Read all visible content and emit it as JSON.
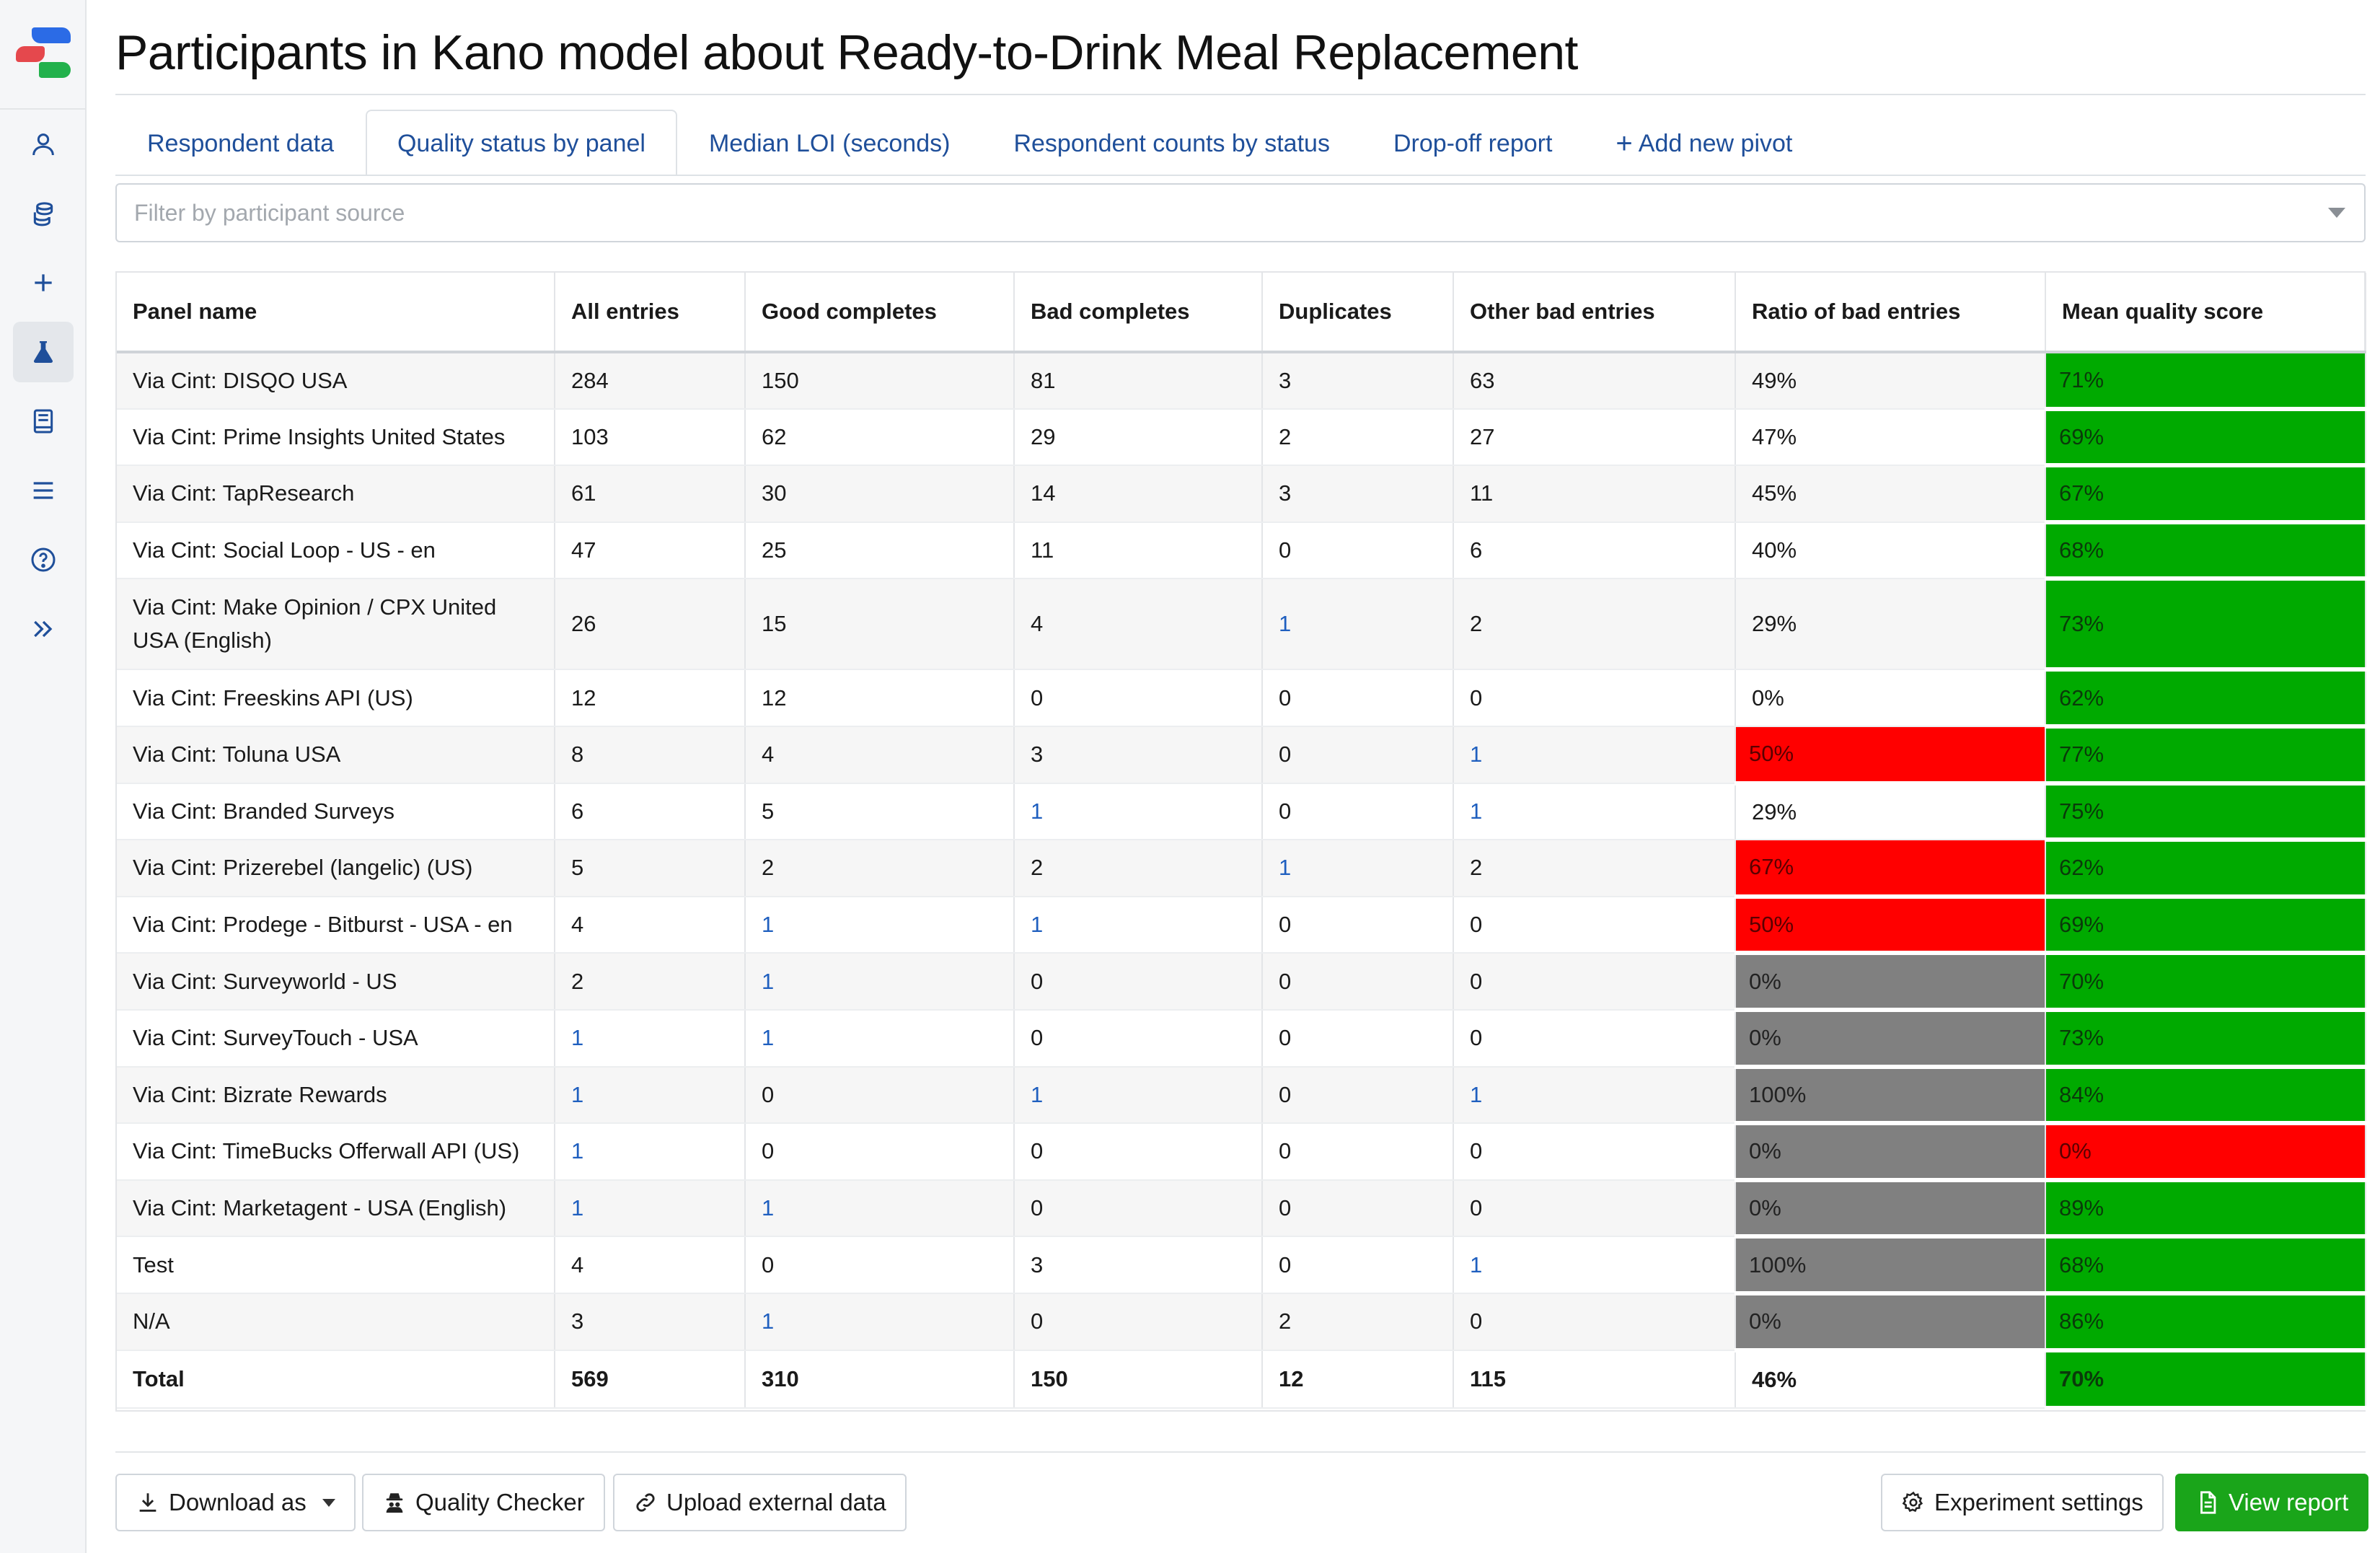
{
  "page": {
    "title": "Participants in Kano model about Ready-to-Drink Meal Replacement"
  },
  "sidebar": {
    "items": [
      {
        "icon": "user-icon"
      },
      {
        "icon": "database-icon"
      },
      {
        "icon": "plus-icon"
      },
      {
        "icon": "flask-icon",
        "active": true
      },
      {
        "icon": "book-icon"
      },
      {
        "icon": "menu-icon"
      },
      {
        "icon": "help-icon"
      },
      {
        "icon": "expand-icon"
      }
    ]
  },
  "tabs": [
    {
      "label": "Respondent data",
      "active": false
    },
    {
      "label": "Quality status by panel",
      "active": true
    },
    {
      "label": "Median LOI (seconds)",
      "active": false
    },
    {
      "label": "Respondent counts by status",
      "active": false
    },
    {
      "label": "Drop-off report",
      "active": false
    },
    {
      "label": "Add new pivot",
      "active": false
    }
  ],
  "filter": {
    "placeholder": "Filter by participant source"
  },
  "table": {
    "headers": [
      "Panel name",
      "All entries",
      "Good completes",
      "Bad completes",
      "Duplicates",
      "Other bad entries",
      "Ratio of bad entries",
      "Mean quality score"
    ],
    "rows": [
      [
        "Via Cint: DISQO USA",
        "284",
        "150",
        "81",
        "3",
        "63",
        "49%",
        "71%"
      ],
      [
        "Via Cint: Prime Insights United States",
        "103",
        "62",
        "29",
        "2",
        "27",
        "47%",
        "69%"
      ],
      [
        "Via Cint: TapResearch",
        "61",
        "30",
        "14",
        "3",
        "11",
        "45%",
        "67%"
      ],
      [
        "Via Cint: Social Loop - US - en",
        "47",
        "25",
        "11",
        "0",
        "6",
        "40%",
        "68%"
      ],
      [
        "Via Cint: Make Opinion / CPX United USA (English)",
        "26",
        "15",
        "4",
        "1",
        "2",
        "29%",
        "73%"
      ],
      [
        "Via Cint: Freeskins API (US)",
        "12",
        "12",
        "0",
        "0",
        "0",
        "0%",
        "62%"
      ],
      [
        "Via Cint: Toluna USA",
        "8",
        "4",
        "3",
        "0",
        "1",
        "50%",
        "77%"
      ],
      [
        "Via Cint: Branded Surveys",
        "6",
        "5",
        "1",
        "0",
        "1",
        "29%",
        "75%"
      ],
      [
        "Via Cint: Prizerebel (langelic) (US)",
        "5",
        "2",
        "2",
        "1",
        "2",
        "67%",
        "62%"
      ],
      [
        "Via Cint: Prodege - Bitburst - USA - en",
        "4",
        "1",
        "1",
        "0",
        "0",
        "50%",
        "69%"
      ],
      [
        "Via Cint: Surveyworld - US",
        "2",
        "1",
        "0",
        "0",
        "0",
        "0%",
        "70%"
      ],
      [
        "Via Cint: SurveyTouch - USA",
        "1",
        "1",
        "0",
        "0",
        "0",
        "0%",
        "73%"
      ],
      [
        "Via Cint: Bizrate Rewards",
        "1",
        "0",
        "1",
        "0",
        "1",
        "100%",
        "84%"
      ],
      [
        "Via Cint: TimeBucks Offerwall API (US)",
        "1",
        "0",
        "0",
        "0",
        "0",
        "0%",
        "0%"
      ],
      [
        "Via Cint: Marketagent - USA (English)",
        "1",
        "1",
        "0",
        "0",
        "0",
        "0%",
        "89%"
      ],
      [
        "Test",
        "4",
        "0",
        "3",
        "0",
        "1",
        "100%",
        "68%"
      ],
      [
        "N/A",
        "3",
        "1",
        "0",
        "2",
        "0",
        "0%",
        "86%"
      ]
    ],
    "link_cells": [
      [
        4,
        4
      ],
      [
        6,
        5
      ],
      [
        7,
        3
      ],
      [
        7,
        5
      ],
      [
        8,
        4
      ],
      [
        9,
        2
      ],
      [
        9,
        3
      ],
      [
        10,
        2
      ],
      [
        11,
        1
      ],
      [
        11,
        2
      ],
      [
        12,
        1
      ],
      [
        12,
        3
      ],
      [
        12,
        5
      ],
      [
        13,
        1
      ],
      [
        14,
        1
      ],
      [
        14,
        2
      ],
      [
        15,
        5
      ],
      [
        16,
        2
      ]
    ],
    "ratio_status": [
      "none",
      "none",
      "none",
      "none",
      "none",
      "none",
      "red",
      "none",
      "red",
      "red",
      "gray",
      "gray",
      "gray",
      "gray",
      "gray",
      "gray",
      "gray"
    ],
    "score_status": [
      "green",
      "green",
      "green",
      "green",
      "green",
      "green",
      "green",
      "green",
      "green",
      "green",
      "green",
      "green",
      "green",
      "red",
      "green",
      "green",
      "green"
    ],
    "total": [
      "Total",
      "569",
      "310",
      "150",
      "12",
      "115",
      "46%",
      "70%"
    ],
    "total_score_status": "green"
  },
  "footer": {
    "download_label": "Download as",
    "quality_label": "Quality Checker",
    "upload_label": "Upload external data",
    "settings_label": "Experiment settings",
    "view_label": "View report"
  },
  "colors": {
    "green": "#00aa00",
    "red": "#ff0000",
    "gray": "#808080",
    "link": "#1f5fbf",
    "primary": "#1aa51a"
  }
}
